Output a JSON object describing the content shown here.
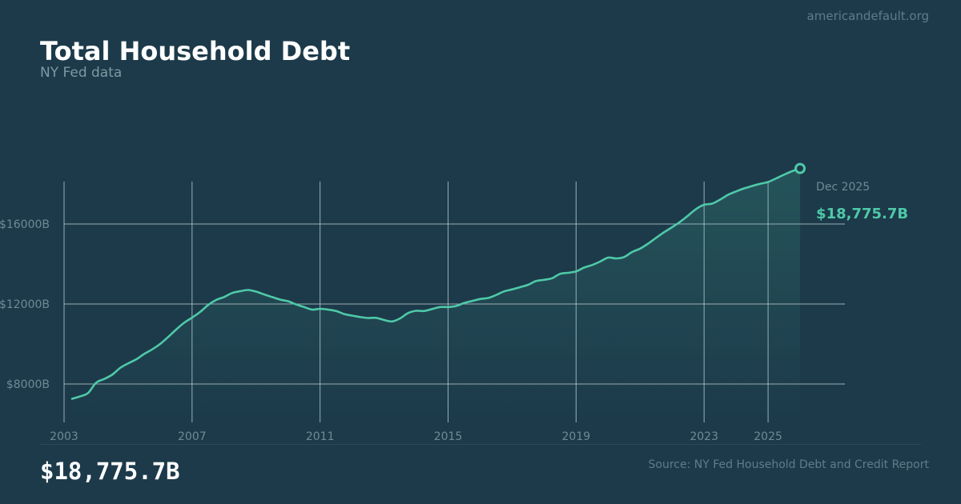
{
  "header": {
    "site": "americandefault.org",
    "title": "Total Household Debt",
    "subtitle": "NY Fed data"
  },
  "footer": {
    "value": "$18,775.7B",
    "source": "Source: NY Fed Household Debt and Credit Report"
  },
  "colors": {
    "background": "#1c3a4a",
    "line": "#4fc9a8",
    "grid": "#c9d3d8",
    "tick_label": "#6f8a96"
  },
  "chart_data": {
    "type": "area",
    "title": "Total Household Debt",
    "subtitle": "NY Fed data",
    "unit": "$B",
    "xlim": [
      2003,
      2027.4
    ],
    "ylim": [
      6000,
      20000
    ],
    "x_ticks": [
      2003,
      2007,
      2011,
      2015,
      2019,
      2023,
      2025
    ],
    "x_tick_labels": [
      "2003",
      "2007",
      "2011",
      "2015",
      "2019",
      "2023",
      "2025"
    ],
    "y_ticks": [
      8000,
      12000,
      16000
    ],
    "y_tick_labels": [
      "$8000B",
      "$12000B",
      "$16000B"
    ],
    "grid": true,
    "annotation": {
      "label": "Dec 2025",
      "value_label": "$18,775.7B"
    },
    "series": [
      {
        "x": [
          2003.25,
          2003.5,
          2003.75,
          2004.0,
          2004.25,
          2004.5,
          2004.75,
          2005.0,
          2005.25,
          2005.5,
          2005.75,
          2006.0,
          2006.25,
          2006.5,
          2006.75,
          2007.0,
          2007.25,
          2007.5,
          2007.75,
          2008.0,
          2008.25,
          2008.5,
          2008.75,
          2009.0,
          2009.25,
          2009.5,
          2009.75,
          2010.0,
          2010.25,
          2010.5,
          2010.75,
          2011.0,
          2011.25,
          2011.5,
          2011.75,
          2012.0,
          2012.25,
          2012.5,
          2012.75,
          2013.0,
          2013.25,
          2013.5,
          2013.75,
          2014.0,
          2014.25,
          2014.5,
          2014.75,
          2015.0,
          2015.25,
          2015.5,
          2015.75,
          2016.0,
          2016.25,
          2016.5,
          2016.75,
          2017.0,
          2017.25,
          2017.5,
          2017.75,
          2018.0,
          2018.25,
          2018.5,
          2018.75,
          2019.0,
          2019.25,
          2019.5,
          2019.75,
          2020.0,
          2020.25,
          2020.5,
          2020.75,
          2021.0,
          2021.25,
          2021.5,
          2021.75,
          2022.0,
          2022.25,
          2022.5,
          2022.75,
          2023.0,
          2023.25,
          2023.5,
          2023.75,
          2024.0,
          2024.25,
          2024.5,
          2024.75,
          2025.0,
          2025.25,
          2025.5,
          2025.75,
          2026.0
        ],
        "values": [
          7260,
          7380,
          7550,
          8060,
          8250,
          8460,
          8800,
          9030,
          9230,
          9500,
          9730,
          10000,
          10350,
          10720,
          11060,
          11320,
          11600,
          11950,
          12200,
          12350,
          12550,
          12640,
          12700,
          12620,
          12480,
          12350,
          12220,
          12140,
          11980,
          11850,
          11720,
          11760,
          11720,
          11650,
          11500,
          11420,
          11350,
          11300,
          11310,
          11200,
          11130,
          11280,
          11550,
          11660,
          11650,
          11750,
          11850,
          11850,
          11900,
          12050,
          12150,
          12250,
          12300,
          12450,
          12630,
          12730,
          12840,
          12960,
          13150,
          13210,
          13290,
          13510,
          13560,
          13630,
          13820,
          13950,
          14120,
          14320,
          14280,
          14350,
          14600,
          14770,
          15020,
          15310,
          15590,
          15840,
          16110,
          16420,
          16750,
          16960,
          17020,
          17220,
          17460,
          17630,
          17780,
          17900,
          18010,
          18100,
          18280,
          18470,
          18640,
          18775.7
        ]
      }
    ]
  }
}
